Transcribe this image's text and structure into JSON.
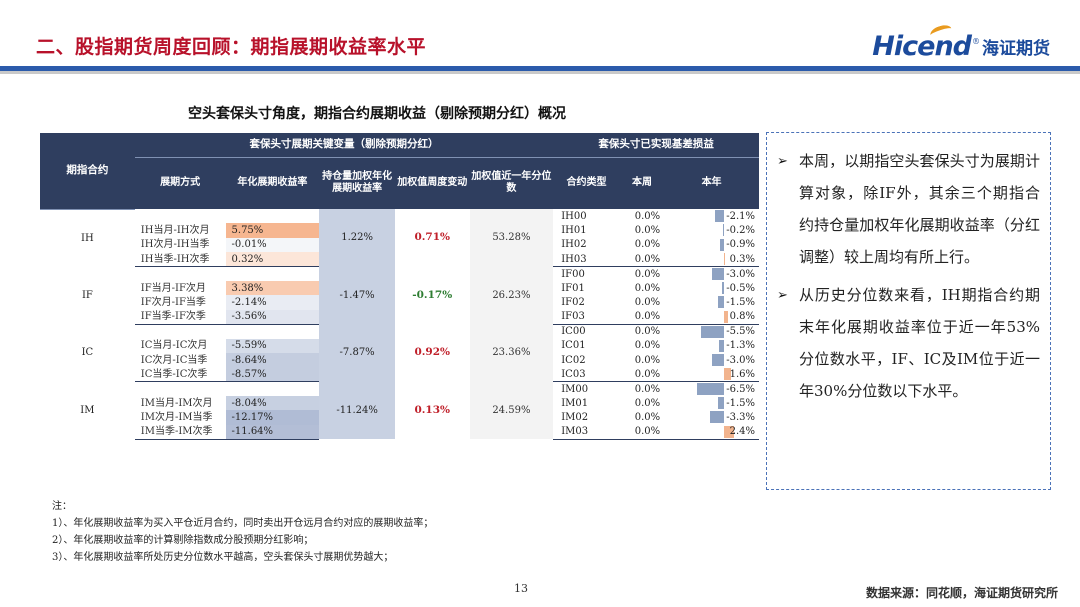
{
  "header": {
    "title": "二、股指期货周度回顾：期指展期收益率水平",
    "logo_brand": "Hicend",
    "logo_reg": "®",
    "logo_cn": "海证期货"
  },
  "table_title": "空头套保头寸角度，期指合约展期收益（剔除预期分红）概况",
  "table": {
    "group_headers": {
      "contract": "期指合约",
      "key_vars": "套保头寸展期关键变量（剔除预期分红）",
      "basis": "套保头寸已实现基差损益"
    },
    "columns": {
      "method": "展期方式",
      "annual": "年化展期收益率",
      "oi_weighted": "持仓量加权年化展期收益率",
      "week_change": "加权值周度变动",
      "percentile": "加权值近一年分位数",
      "type": "合约类型",
      "this_week": "本周",
      "this_year": "本年"
    },
    "groups": [
      {
        "contract": "IH",
        "oi_weighted": "1.22%",
        "week_change": "0.71%",
        "week_change_color": "#c0202a",
        "percentile": "53.28%",
        "rows": [
          {
            "method": "IH当月-IH次月",
            "annual": "5.75%",
            "annual_val": 5.75
          },
          {
            "method": "IH次月-IH当季",
            "annual": "-0.01%",
            "annual_val": -0.01
          },
          {
            "method": "IH当季-IH次季",
            "annual": "0.32%",
            "annual_val": 0.32
          }
        ],
        "basis": [
          {
            "type": "IH00",
            "week": "0.0%",
            "year": "-2.1%",
            "year_val": -2.1
          },
          {
            "type": "IH01",
            "week": "0.0%",
            "year": "-0.2%",
            "year_val": -0.2
          },
          {
            "type": "IH02",
            "week": "0.0%",
            "year": "-0.9%",
            "year_val": -0.9
          },
          {
            "type": "IH03",
            "week": "0.0%",
            "year": "0.3%",
            "year_val": 0.3
          }
        ]
      },
      {
        "contract": "IF",
        "oi_weighted": "-1.47%",
        "week_change": "-0.17%",
        "week_change_color": "#2e7d32",
        "percentile": "26.23%",
        "rows": [
          {
            "method": "IF当月-IF次月",
            "annual": "3.38%",
            "annual_val": 3.38
          },
          {
            "method": "IF次月-IF当季",
            "annual": "-2.14%",
            "annual_val": -2.14
          },
          {
            "method": "IF当季-IF次季",
            "annual": "-3.56%",
            "annual_val": -3.56
          }
        ],
        "basis": [
          {
            "type": "IF00",
            "week": "0.0%",
            "year": "-3.0%",
            "year_val": -3.0
          },
          {
            "type": "IF01",
            "week": "0.0%",
            "year": "-0.5%",
            "year_val": -0.5
          },
          {
            "type": "IF02",
            "week": "0.0%",
            "year": "-1.5%",
            "year_val": -1.5
          },
          {
            "type": "IF03",
            "week": "0.0%",
            "year": "0.8%",
            "year_val": 0.8
          }
        ]
      },
      {
        "contract": "IC",
        "oi_weighted": "-7.87%",
        "week_change": "0.92%",
        "week_change_color": "#c0202a",
        "percentile": "23.36%",
        "rows": [
          {
            "method": "IC当月-IC次月",
            "annual": "-5.59%",
            "annual_val": -5.59
          },
          {
            "method": "IC次月-IC当季",
            "annual": "-8.64%",
            "annual_val": -8.64
          },
          {
            "method": "IC当季-IC次季",
            "annual": "-8.57%",
            "annual_val": -8.57
          }
        ],
        "basis": [
          {
            "type": "IC00",
            "week": "0.0%",
            "year": "-5.5%",
            "year_val": -5.5
          },
          {
            "type": "IC01",
            "week": "0.0%",
            "year": "-1.3%",
            "year_val": -1.3
          },
          {
            "type": "IC02",
            "week": "0.0%",
            "year": "-3.0%",
            "year_val": -3.0
          },
          {
            "type": "IC03",
            "week": "0.0%",
            "year": "1.6%",
            "year_val": 1.6
          }
        ]
      },
      {
        "contract": "IM",
        "oi_weighted": "-11.24%",
        "week_change": "0.13%",
        "week_change_color": "#c0202a",
        "percentile": "24.59%",
        "rows": [
          {
            "method": "IM当月-IM次月",
            "annual": "-8.04%",
            "annual_val": -8.04
          },
          {
            "method": "IM次月-IM当季",
            "annual": "-12.17%",
            "annual_val": -12.17
          },
          {
            "method": "IM当季-IM次季",
            "annual": "-11.64%",
            "annual_val": -11.64
          }
        ],
        "basis": [
          {
            "type": "IM00",
            "week": "0.0%",
            "year": "-6.5%",
            "year_val": -6.5
          },
          {
            "type": "IM01",
            "week": "0.0%",
            "year": "-1.5%",
            "year_val": -1.5
          },
          {
            "type": "IM02",
            "week": "0.0%",
            "year": "-3.3%",
            "year_val": -3.3
          },
          {
            "type": "IM03",
            "week": "0.0%",
            "year": "2.4%",
            "year_val": 2.4
          }
        ]
      }
    ]
  },
  "notes": [
    "注：",
    "1）、年化展期收益率为买入平仓近月合约，同时卖出开仓远月合约对应的展期收益率；",
    "2）、年化展期收益率的计算剔除指数成分股预期分红影响；",
    "3）、年化展期收益率所处历史分位数水平越高，空头套保头寸展期优势越大；"
  ],
  "callout": {
    "bullet": "➢",
    "items": [
      "本周，以期指空头套保头寸为展期计算对象，除IF外，其余三个期指合约持仓量加权年化展期收益率（分红调整）较上周均有所上行。",
      "从历史分位数来看，IH期指合约期末年化展期收益率位于近一年53%分位数水平，IF、IC及IM位于近一年30%分位数以下水平。"
    ]
  },
  "footer": {
    "page": "13",
    "source": "数据来源：同花顺，海证期货研究所"
  }
}
